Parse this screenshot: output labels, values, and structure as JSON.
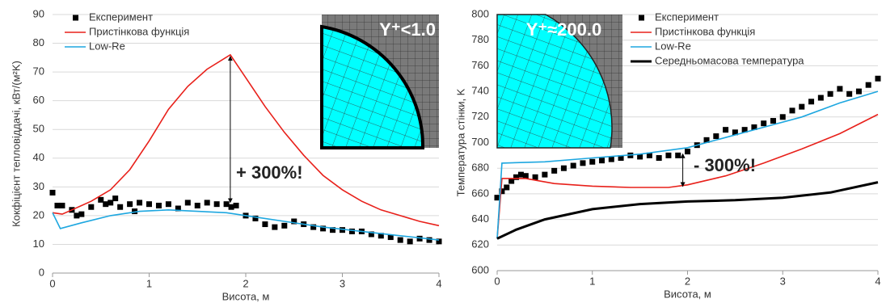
{
  "chart_data": [
    {
      "type": "line",
      "x_label": "Висота, м",
      "y_label": "Кокфіцієнт тепловіддачі, кВт/(м²K)",
      "inset_label": "Y⁺<1.0",
      "annotation": "+ 300%!",
      "xlim": [
        0,
        4
      ],
      "xticks": [
        0,
        1,
        2,
        3,
        4
      ],
      "ylim": [
        0,
        90
      ],
      "yticks": [
        0,
        10,
        20,
        30,
        40,
        50,
        60,
        70,
        80,
        90
      ],
      "grid": true,
      "legend": "top-left",
      "series": [
        {
          "name": "Експеримент",
          "color": "#000000",
          "mode": "markers",
          "x": [
            0,
            0.05,
            0.1,
            0.2,
            0.25,
            0.3,
            0.4,
            0.5,
            0.55,
            0.6,
            0.65,
            0.7,
            0.8,
            0.85,
            0.9,
            1.0,
            1.1,
            1.2,
            1.3,
            1.4,
            1.5,
            1.6,
            1.7,
            1.8,
            1.85,
            1.9,
            2.0,
            2.1,
            2.2,
            2.3,
            2.4,
            2.5,
            2.6,
            2.7,
            2.8,
            2.9,
            3.0,
            3.1,
            3.2,
            3.3,
            3.4,
            3.5,
            3.6,
            3.7,
            3.8,
            3.9,
            4.0
          ],
          "values": [
            28,
            23.5,
            23.5,
            22,
            20,
            20.5,
            23,
            25.5,
            24,
            24.5,
            26,
            23,
            24,
            21.5,
            24.5,
            24,
            23.5,
            24,
            22.5,
            24.5,
            23.5,
            24.5,
            24,
            24,
            23,
            23.5,
            20,
            19,
            17,
            16,
            16.5,
            18,
            17,
            16,
            15.5,
            15,
            15,
            14.5,
            14.5,
            13.5,
            13,
            12.5,
            11.5,
            11,
            12,
            11.5,
            11
          ]
        },
        {
          "name": "Пристінкова функція",
          "color": "#e8201a",
          "mode": "line",
          "x": [
            0,
            0.1,
            0.2,
            0.4,
            0.6,
            0.8,
            1.0,
            1.2,
            1.4,
            1.6,
            1.84,
            2.0,
            2.2,
            2.4,
            2.6,
            2.8,
            3.0,
            3.2,
            3.4,
            3.6,
            3.8,
            4.0
          ],
          "values": [
            21,
            20.5,
            22,
            25,
            29,
            36,
            46,
            57,
            65,
            71,
            76,
            68,
            58,
            49,
            41,
            34,
            29,
            25,
            22,
            20,
            18,
            16.5
          ]
        },
        {
          "name": "Low-Re",
          "color": "#1ea7e0",
          "mode": "line",
          "x": [
            0,
            0.08,
            0.3,
            0.6,
            0.9,
            1.2,
            1.5,
            1.8,
            2.1,
            2.4,
            2.8,
            3.2,
            3.6,
            4.0
          ],
          "values": [
            21,
            15.5,
            17.5,
            20,
            21.5,
            22,
            21.5,
            21,
            19.5,
            18,
            16,
            14.5,
            13,
            11.5
          ]
        }
      ]
    },
    {
      "type": "line",
      "x_label": "Висота, м",
      "y_label": "Температура стінки, K",
      "inset_label": "Y⁺≈200.0",
      "annotation": "- 300%!",
      "xlim": [
        0,
        4
      ],
      "xticks": [
        0,
        1,
        2,
        3,
        4
      ],
      "ylim": [
        600,
        800
      ],
      "yticks": [
        600,
        620,
        640,
        660,
        680,
        700,
        720,
        740,
        760,
        780,
        800
      ],
      "grid": true,
      "legend": "top-right",
      "series": [
        {
          "name": "Експеримент",
          "color": "#000000",
          "mode": "markers",
          "x": [
            0,
            0.05,
            0.1,
            0.15,
            0.2,
            0.25,
            0.3,
            0.4,
            0.5,
            0.6,
            0.7,
            0.8,
            0.9,
            1.0,
            1.1,
            1.2,
            1.3,
            1.4,
            1.5,
            1.6,
            1.7,
            1.8,
            1.9,
            2.0,
            2.1,
            2.2,
            2.3,
            2.4,
            2.5,
            2.6,
            2.7,
            2.8,
            2.9,
            3.0,
            3.1,
            3.2,
            3.3,
            3.4,
            3.5,
            3.6,
            3.7,
            3.8,
            3.9,
            4.0
          ],
          "values": [
            657,
            662,
            665,
            670,
            673,
            675,
            674,
            673,
            675,
            678,
            680,
            682,
            684,
            685,
            686,
            687,
            688,
            690,
            689,
            690,
            688,
            690,
            690,
            693,
            698,
            702,
            705,
            710,
            708,
            710,
            712,
            715,
            717,
            720,
            725,
            728,
            732,
            735,
            738,
            742,
            738,
            740,
            745,
            750
          ]
        },
        {
          "name": "Пристінкова функція",
          "color": "#e8201a",
          "mode": "line",
          "x": [
            0,
            0.05,
            0.3,
            0.6,
            1.0,
            1.4,
            1.8,
            2.0,
            2.4,
            2.8,
            3.2,
            3.6,
            4.0
          ],
          "values": [
            625,
            672,
            672,
            668,
            666,
            665,
            665,
            667,
            674,
            684,
            695,
            707,
            722
          ]
        },
        {
          "name": "Low-Re",
          "color": "#1ea7e0",
          "mode": "line",
          "x": [
            0,
            0.05,
            0.5,
            1.0,
            1.5,
            2.0,
            2.4,
            2.8,
            3.2,
            3.6,
            4.0
          ],
          "values": [
            625,
            684,
            685,
            688,
            691,
            696,
            704,
            712,
            720,
            731,
            740
          ]
        },
        {
          "name": "Середньомасова температура",
          "color": "#000000",
          "mode": "line",
          "width": 3,
          "x": [
            0,
            0.2,
            0.5,
            1.0,
            1.5,
            2.0,
            2.5,
            3.0,
            3.5,
            4.0
          ],
          "values": [
            625,
            632,
            640,
            648,
            652,
            654,
            655,
            657,
            661,
            669
          ]
        }
      ]
    }
  ]
}
